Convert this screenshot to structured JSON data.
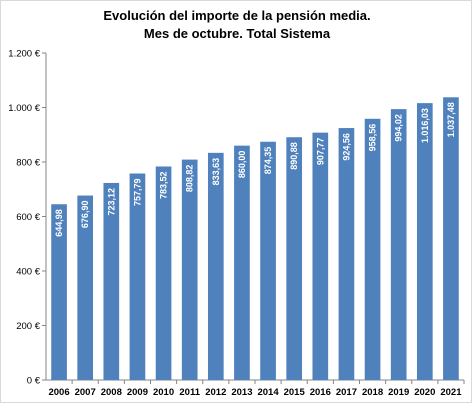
{
  "chart_data": {
    "type": "bar",
    "title": "Evolución del importe de la pensión media.",
    "subtitle": "Mes de octubre. Total Sistema",
    "xlabel": "",
    "ylabel": "",
    "categories": [
      "2006",
      "2007",
      "2008",
      "2009",
      "2010",
      "2011",
      "2012",
      "2013",
      "2014",
      "2015",
      "2016",
      "2017",
      "2018",
      "2019",
      "2020",
      "2021"
    ],
    "values": [
      644.98,
      676.9,
      723.12,
      757.79,
      783.52,
      808.82,
      833.63,
      860.0,
      874.35,
      890.88,
      907.77,
      924.56,
      958.56,
      994.02,
      1016.03,
      1037.48
    ],
    "data_labels": [
      "644,98",
      "676,90",
      "723,12",
      "757,79",
      "783,52",
      "808,82",
      "833,63",
      "860,00",
      "874,35",
      "890,88",
      "907,77",
      "924,56",
      "958,56",
      "994,02",
      "1.016,03",
      "1.037,48"
    ],
    "ylim": [
      0,
      1200
    ],
    "yticks": [
      0,
      200,
      400,
      600,
      800,
      1000,
      1200
    ],
    "ytick_labels": [
      "0 €",
      "200 €",
      "400 €",
      "600 €",
      "800 €",
      "1.000 €",
      "1.200 €"
    ],
    "grid": false,
    "legend": "none",
    "bar_color": "#4f81bd",
    "label_color": "#ffffff"
  }
}
